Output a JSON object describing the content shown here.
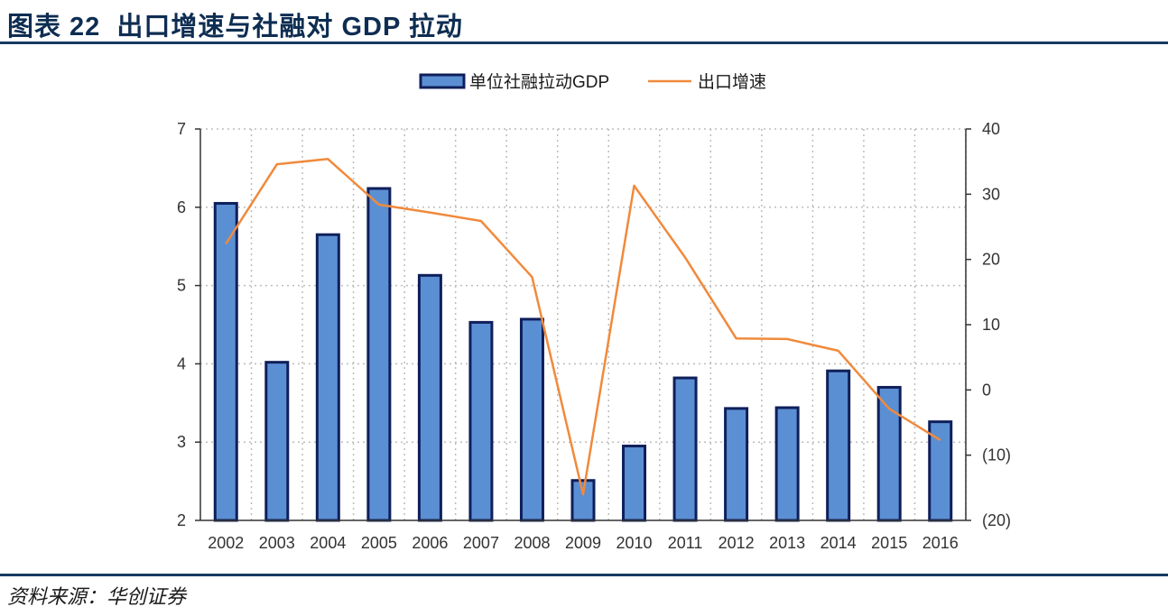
{
  "header": {
    "title": "图表 22  出口增速与社融对 GDP 拉动"
  },
  "footer": {
    "source": "资料来源：华创证券"
  },
  "colors": {
    "bar_fill": "#5b8fd3",
    "bar_stroke": "#0f1f5a",
    "line": "#f08a3c",
    "negative_tick": "#ff0000",
    "grid": "#bdbdbd"
  },
  "chart_data": {
    "type": "bar+line",
    "categories": [
      "2002",
      "2003",
      "2004",
      "2005",
      "2006",
      "2007",
      "2008",
      "2009",
      "2010",
      "2011",
      "2012",
      "2013",
      "2014",
      "2015",
      "2016"
    ],
    "series": [
      {
        "name": "单位社融拉动GDP",
        "type": "bar",
        "axis": "left",
        "values": [
          6.05,
          4.02,
          5.65,
          6.24,
          5.13,
          4.53,
          4.57,
          2.51,
          2.95,
          3.82,
          3.43,
          3.44,
          3.91,
          3.7,
          3.26
        ]
      },
      {
        "name": "出口增速",
        "type": "line",
        "axis": "right",
        "values": [
          22.4,
          34.6,
          35.4,
          28.4,
          27.2,
          25.9,
          17.3,
          -16.0,
          31.3,
          20.3,
          7.9,
          7.8,
          6.0,
          -2.9,
          -7.7
        ]
      }
    ],
    "y_left": {
      "min": 2,
      "max": 7,
      "ticks": [
        "7",
        "6",
        "5",
        "4",
        "3",
        "2"
      ]
    },
    "y_right": {
      "min": -20,
      "max": 40,
      "ticks": [
        "40",
        "30",
        "20",
        "10",
        "0",
        "(10)",
        "(20)"
      ]
    },
    "legend": [
      "单位社融拉动GDP",
      "出口增速"
    ],
    "grid": true
  }
}
